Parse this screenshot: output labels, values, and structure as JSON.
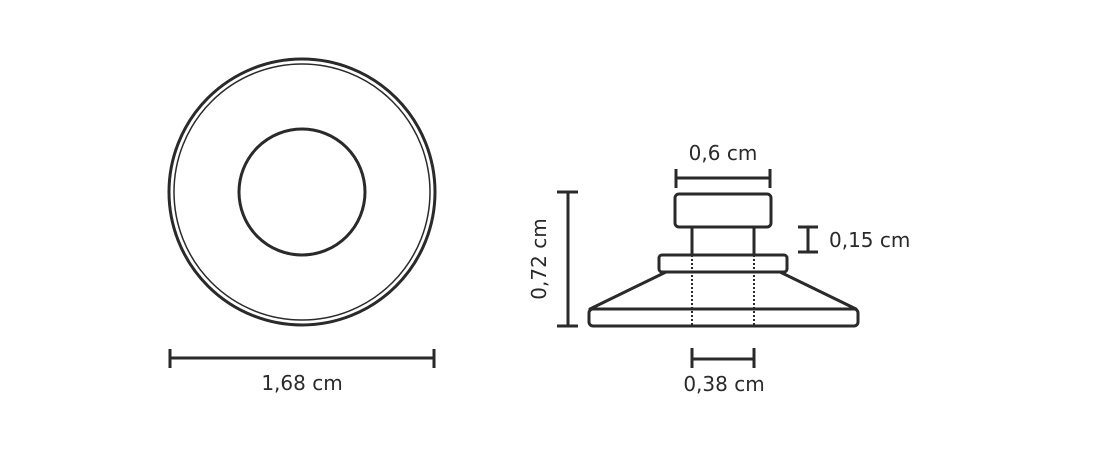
{
  "colors": {
    "stroke": "#2a2a2a",
    "background": "#ffffff"
  },
  "top_view": {
    "diameter_label": "1,68 cm"
  },
  "side_view": {
    "cap_width_label": "0,6 cm",
    "total_height_label": "0,72 cm",
    "flange_height_label": "0,15 cm",
    "hole_width_label": "0,38 cm"
  }
}
